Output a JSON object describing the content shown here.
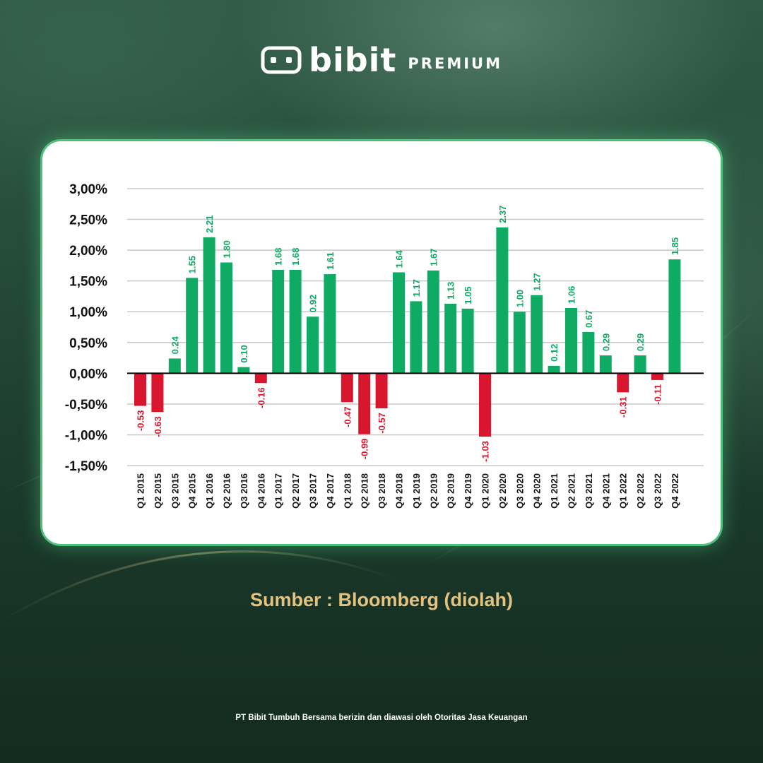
{
  "brand": {
    "name": "bibit",
    "tier": "PREMIUM",
    "icon": "bibit-logo-icon"
  },
  "colors": {
    "positive": "#0faa63",
    "negative": "#d8172e",
    "grid": "#c8c8c8",
    "axis_text": "#111111",
    "source_text": "#e3c37f"
  },
  "chart_data": {
    "type": "bar",
    "categories": [
      "Q1 2015",
      "Q2 2015",
      "Q3 2015",
      "Q4 2015",
      "Q1 2016",
      "Q2 2016",
      "Q3 2016",
      "Q4 2016",
      "Q1 2017",
      "Q2 2017",
      "Q3 2017",
      "Q4 2017",
      "Q1 2018",
      "Q2 2018",
      "Q3 2018",
      "Q4 2018",
      "Q1 2019",
      "Q2 2019",
      "Q3 2019",
      "Q4 2019",
      "Q1 2020",
      "Q2 2020",
      "Q3 2020",
      "Q4 2020",
      "Q1 2021",
      "Q2 2021",
      "Q3 2021",
      "Q4 2021",
      "Q1 2022",
      "Q2 2022",
      "Q3 2022",
      "Q4 2022"
    ],
    "values": [
      -0.53,
      -0.63,
      0.24,
      1.55,
      2.21,
      1.8,
      0.1,
      -0.16,
      1.68,
      1.68,
      0.92,
      1.61,
      -0.47,
      -0.99,
      -0.57,
      1.64,
      1.17,
      1.67,
      1.13,
      1.05,
      -1.03,
      2.37,
      1.0,
      1.27,
      0.12,
      1.06,
      0.67,
      0.29,
      -0.31,
      0.29,
      -0.11,
      1.85
    ],
    "value_labels": [
      "-0.53",
      "-0.63",
      "0.24",
      "1.55",
      "2.21",
      "1.80",
      "0.10",
      "-0.16",
      "1.68",
      "1.68",
      "0.92",
      "1.61",
      "-0.47",
      "-0.99",
      "-0.57",
      "1.64",
      "1.17",
      "1.67",
      "1.13",
      "1.05",
      "-1.03",
      "2.37",
      "1.00",
      "1.27",
      "0.12",
      "1.06",
      "0.67",
      "0.29",
      "-0.31",
      "0.29",
      "-0.11",
      "1.85"
    ],
    "y_ticks": [
      3.0,
      2.5,
      2.0,
      1.5,
      1.0,
      0.5,
      0.0,
      -0.5,
      -1.0,
      -1.5
    ],
    "y_tick_labels": [
      "3,00%",
      "2,50%",
      "2,00%",
      "1,50%",
      "1,00%",
      "0,50%",
      "0,00%",
      "-0,50%",
      "-1,00%",
      "-1,50%"
    ],
    "ylim": [
      -1.5,
      3.0
    ],
    "grid": true,
    "legend": "none"
  },
  "source_text": "Sumber : Bloomberg (diolah)",
  "footer_text": "PT Bibit Tumbuh Bersama berizin dan diawasi oleh Otoritas Jasa Keuangan"
}
